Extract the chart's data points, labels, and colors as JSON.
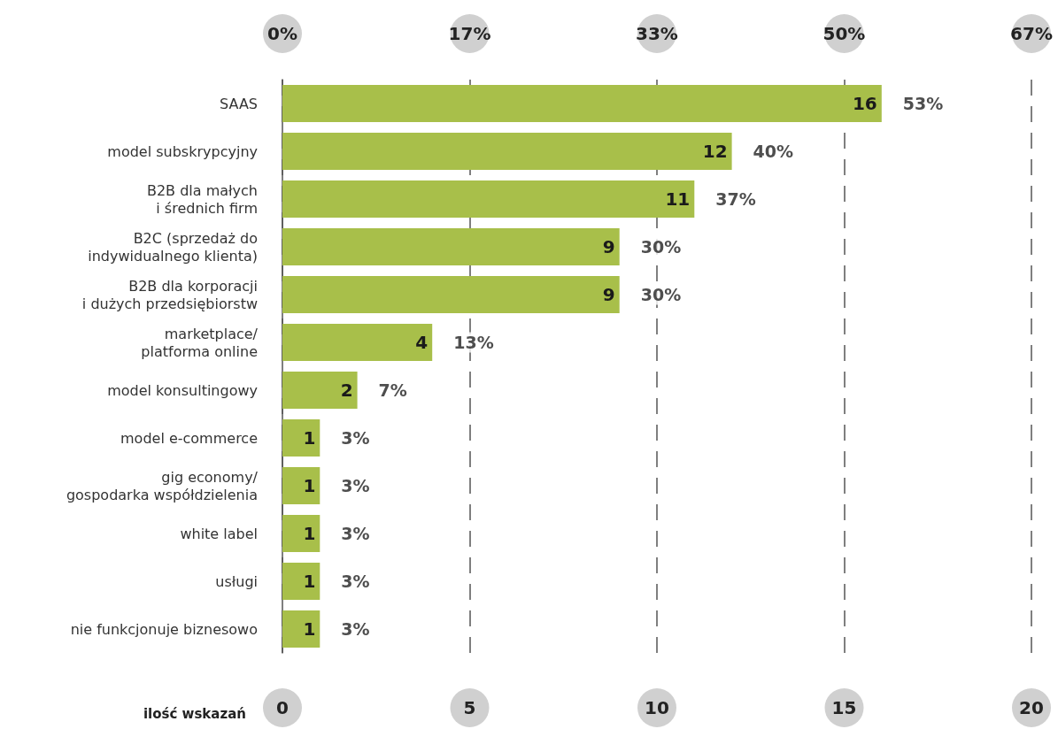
{
  "chart_data": {
    "type": "bar",
    "orientation": "horizontal",
    "xlabel": "ilość wskazań",
    "categories": [
      "SAAS",
      "model subskrypcyjny",
      "B2B dla małych\ni średnich firm",
      "B2C (sprzedaż do\nindywidualnego klienta)",
      "B2B dla korporacji\ni dużych przedsiębiorstw",
      "marketplace/\nplatforma online",
      "model konsultingowy",
      "model e-commerce",
      "gig economy/\ngospodarka współdzielenia",
      "white label",
      "usługi",
      "nie funkcjonuje biznesowo"
    ],
    "values": [
      16,
      12,
      11,
      9,
      9,
      4,
      2,
      1,
      1,
      1,
      1,
      1
    ],
    "color": "#a8bf4a",
    "data_labels": true,
    "xlim": [
      0,
      20
    ],
    "xticks": [
      0,
      5,
      10,
      15,
      20
    ],
    "x2lim": [
      0,
      66.67
    ],
    "x2ticks": [
      {
        "value": 0,
        "label": "0%"
      },
      {
        "value": 16.67,
        "label": "17%"
      },
      {
        "value": 33.33,
        "label": "33%"
      },
      {
        "value": 50,
        "label": "50%"
      },
      {
        "value": 66.67,
        "label": "67%"
      }
    ],
    "annotations": [
      {
        "text": "53%",
        "x": 16,
        "y": "SAAS"
      },
      {
        "text": "40%",
        "x": 12,
        "y": "model subskrypcyjny"
      },
      {
        "text": "37%",
        "x": 11,
        "y": "B2B dla małych\ni średnich firm"
      },
      {
        "text": "30%",
        "x": 9,
        "y": "B2C (sprzedaż do\nindywidualnego klienta)"
      },
      {
        "text": "30%",
        "x": 9,
        "y": "B2B dla korporacji\ni dużych przedsiębiorstw"
      },
      {
        "text": "13%",
        "x": 4,
        "y": "marketplace/\nplatforma online"
      },
      {
        "text": "7%",
        "x": 2,
        "y": "model konsultingowy"
      },
      {
        "text": "3%",
        "x": 1,
        "y": "model e-commerce"
      },
      {
        "text": "3%",
        "x": 1,
        "y": "gig economy/\ngospodarka współdzielenia"
      },
      {
        "text": "3%",
        "x": 1,
        "y": "white label"
      },
      {
        "text": "3%",
        "x": 1,
        "y": "usługi"
      },
      {
        "text": "3%",
        "x": 1,
        "y": "nie funkcjonuje biznesowo"
      }
    ],
    "grid": "x"
  }
}
